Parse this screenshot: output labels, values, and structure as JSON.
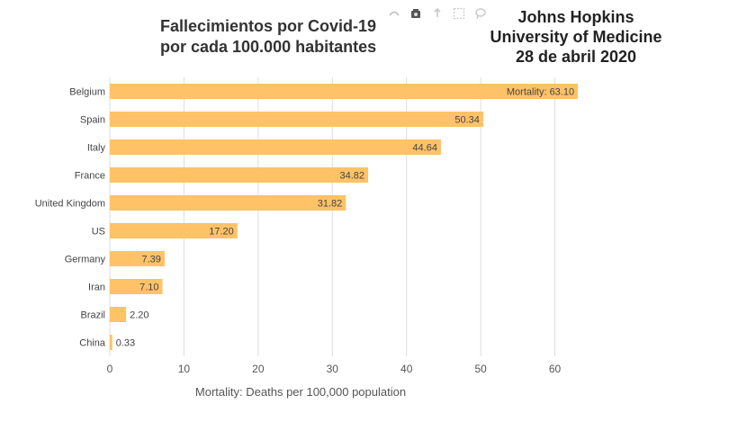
{
  "chart_data": {
    "type": "bar",
    "orientation": "horizontal",
    "title": "Fallecimientos por Covid-19\npor cada 100.000 habitantes",
    "annotation": "Johns Hopkins\nUniversity of Medicine\n28 de abril 2020",
    "xlabel": "Mortality: Deaths per 100,000 population",
    "ylabel": "",
    "xlim": [
      0,
      66
    ],
    "xticks": [
      0,
      10,
      20,
      30,
      40,
      50,
      60
    ],
    "grid": true,
    "categories": [
      "Belgium",
      "Spain",
      "Italy",
      "France",
      "United Kingdom",
      "US",
      "Germany",
      "Iran",
      "Brazil",
      "China"
    ],
    "values": [
      63.1,
      50.34,
      44.64,
      34.82,
      31.82,
      17.2,
      7.39,
      7.1,
      2.2,
      0.33
    ],
    "value_labels": [
      "Mortality: 63.10",
      "50.34",
      "44.64",
      "34.82",
      "31.82",
      "17.20",
      "7.39",
      "7.10",
      "2.20",
      "0.33"
    ],
    "bar_color": "#ffc266"
  },
  "toolbar": {
    "icons": [
      "zoom-icon",
      "camera-icon",
      "upload-icon",
      "select-box-icon",
      "lasso-icon"
    ]
  }
}
